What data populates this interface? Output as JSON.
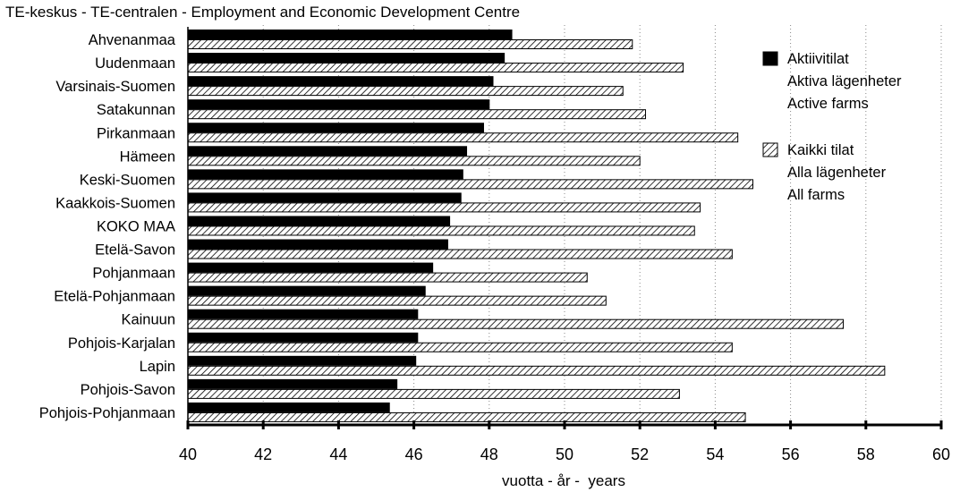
{
  "chart_data": {
    "type": "bar",
    "orientation": "horizontal",
    "title": "TE-keskus - TE-centralen - Employment and Economic Development Centre",
    "xlabel": "vuotta - år -  years",
    "ylabel": "",
    "xlim": [
      40,
      60
    ],
    "x_ticks": [
      "40",
      "42",
      "44",
      "46",
      "48",
      "50",
      "52",
      "54",
      "56",
      "58",
      "60"
    ],
    "grid": "vertical dotted",
    "legend_position": "right",
    "categories": [
      "Ahvenanmaa",
      "Uudenmaan",
      "Varsinais-Suomen",
      "Satakunnan",
      "Pirkanmaan",
      "Hämeen",
      "Keski-Suomen",
      "Kaakkois-Suomen",
      "KOKO MAA",
      "Etelä-Savon",
      "Pohjanmaan",
      "Etelä-Pohjanmaan",
      "Kainuun",
      "Pohjois-Karjalan",
      "Lapin",
      "Pohjois-Savon",
      "Pohjois-Pohjanmaan"
    ],
    "series": [
      {
        "name_lines": [
          "Aktiivitilat",
          "Aktiva lägenheter",
          "Active farms"
        ],
        "fill": "solid",
        "color": "#000000",
        "values": [
          48.6,
          48.4,
          48.1,
          48.0,
          47.85,
          47.4,
          47.3,
          47.25,
          46.95,
          46.9,
          46.5,
          46.3,
          46.1,
          46.1,
          46.05,
          45.55,
          45.35
        ]
      },
      {
        "name_lines": [
          "Kaikki tilat",
          "Alla lägenheter",
          "All farms"
        ],
        "fill": "hatched",
        "color": "#000000",
        "values": [
          51.8,
          53.15,
          51.55,
          52.15,
          54.6,
          52.0,
          55.0,
          53.6,
          53.45,
          54.45,
          50.6,
          51.1,
          57.4,
          54.45,
          58.5,
          53.05,
          54.8
        ]
      }
    ]
  }
}
